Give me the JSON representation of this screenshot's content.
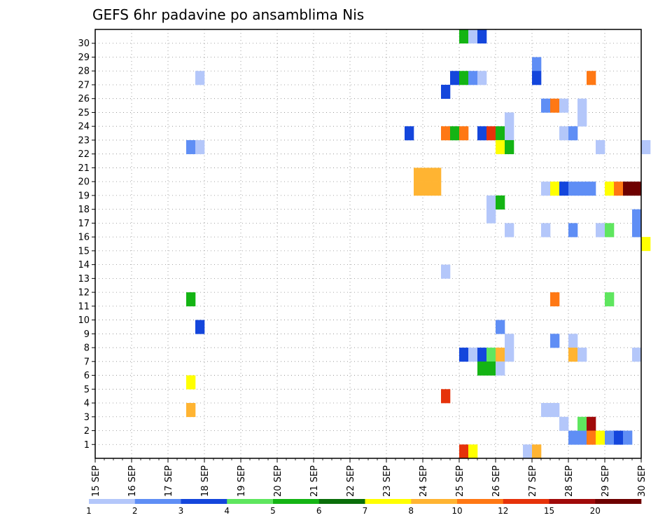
{
  "chart_data": {
    "type": "heatmap",
    "title": "GEFS 6hr padavine po ansamblima Nis",
    "xlabel": "",
    "ylabel": "",
    "x_tick_labels": [
      "15 SEP",
      "16 SEP",
      "17 SEP",
      "18 SEP",
      "19 SEP",
      "20 SEP",
      "21 SEP",
      "22 SEP",
      "23 SEP",
      "24 SEP",
      "25 SEP",
      "26 SEP",
      "27 SEP",
      "28 SEP",
      "29 SEP",
      "30 SEP"
    ],
    "y_tick_labels": [
      "1",
      "2",
      "3",
      "4",
      "5",
      "6",
      "7",
      "8",
      "9",
      "10",
      "11",
      "12",
      "13",
      "14",
      "15",
      "16",
      "17",
      "18",
      "19",
      "20",
      "21",
      "22",
      "23",
      "24",
      "25",
      "26",
      "27",
      "28",
      "29",
      "30"
    ],
    "time_steps_per_day": 4,
    "grid": true,
    "legend_position": "bottom",
    "legend": {
      "levels": [
        "1",
        "2",
        "3",
        "4",
        "5",
        "6",
        "7",
        "8",
        "10",
        "12",
        "15",
        "20"
      ],
      "colors": [
        "#b4c7fa",
        "#5f8ef5",
        "#1446dc",
        "#5fe65f",
        "#14b414",
        "#0a6e0a",
        "#ffff00",
        "#ffb432",
        "#ff7814",
        "#e6320a",
        "#a00a0a",
        "#6e0000"
      ]
    },
    "cells": [
      {
        "member": 30,
        "step": 40,
        "category": 5
      },
      {
        "member": 30,
        "step": 41,
        "category": 1
      },
      {
        "member": 30,
        "step": 42,
        "category": 3
      },
      {
        "member": 28,
        "step": 48,
        "category": 2
      },
      {
        "member": 27,
        "step": 11,
        "category": 1
      },
      {
        "member": 27,
        "step": 39,
        "category": 3
      },
      {
        "member": 27,
        "step": 40,
        "category": 5
      },
      {
        "member": 27,
        "step": 41,
        "category": 2
      },
      {
        "member": 27,
        "step": 42,
        "category": 1
      },
      {
        "member": 27,
        "step": 48,
        "category": 3
      },
      {
        "member": 27,
        "step": 54,
        "category": 9
      },
      {
        "member": 26,
        "step": 38,
        "category": 3
      },
      {
        "member": 25,
        "step": 49,
        "category": 2
      },
      {
        "member": 25,
        "step": 50,
        "category": 9
      },
      {
        "member": 25,
        "step": 51,
        "category": 1
      },
      {
        "member": 25,
        "step": 53,
        "category": 1
      },
      {
        "member": 24,
        "step": 45,
        "category": 1
      },
      {
        "member": 24,
        "step": 53,
        "category": 1
      },
      {
        "member": 23,
        "step": 34,
        "category": 3
      },
      {
        "member": 23,
        "step": 38,
        "category": 9
      },
      {
        "member": 23,
        "step": 39,
        "category": 5
      },
      {
        "member": 23,
        "step": 40,
        "category": 9
      },
      {
        "member": 23,
        "step": 42,
        "category": 3
      },
      {
        "member": 23,
        "step": 43,
        "category": 10
      },
      {
        "member": 23,
        "step": 44,
        "category": 5
      },
      {
        "member": 23,
        "step": 45,
        "category": 1
      },
      {
        "member": 23,
        "step": 51,
        "category": 1
      },
      {
        "member": 23,
        "step": 52,
        "category": 2
      },
      {
        "member": 22,
        "step": 10,
        "category": 2
      },
      {
        "member": 22,
        "step": 11,
        "category": 1
      },
      {
        "member": 22,
        "step": 44,
        "category": 7
      },
      {
        "member": 22,
        "step": 45,
        "category": 5
      },
      {
        "member": 22,
        "step": 55,
        "category": 1
      },
      {
        "member": 22,
        "step": 60,
        "category": 1
      },
      {
        "member": 20,
        "step": 35,
        "category": 8
      },
      {
        "member": 20,
        "step": 36,
        "category": 8
      },
      {
        "member": 20,
        "step": 37,
        "category": 8
      },
      {
        "member": 19,
        "step": 35,
        "category": 8
      },
      {
        "member": 19,
        "step": 36,
        "category": 8
      },
      {
        "member": 19,
        "step": 37,
        "category": 8
      },
      {
        "member": 19,
        "step": 49,
        "category": 1
      },
      {
        "member": 19,
        "step": 50,
        "category": 7
      },
      {
        "member": 19,
        "step": 51,
        "category": 3
      },
      {
        "member": 19,
        "step": 52,
        "category": 2
      },
      {
        "member": 19,
        "step": 53,
        "category": 2
      },
      {
        "member": 19,
        "step": 54,
        "category": 2
      },
      {
        "member": 19,
        "step": 56,
        "category": 7
      },
      {
        "member": 19,
        "step": 57,
        "category": 9
      },
      {
        "member": 19,
        "step": 58,
        "category": 12
      },
      {
        "member": 19,
        "step": 59,
        "category": 12
      },
      {
        "member": 18,
        "step": 43,
        "category": 1
      },
      {
        "member": 18,
        "step": 44,
        "category": 5
      },
      {
        "member": 17,
        "step": 43,
        "category": 1
      },
      {
        "member": 17,
        "step": 59,
        "category": 2
      },
      {
        "member": 16,
        "step": 45,
        "category": 1
      },
      {
        "member": 16,
        "step": 49,
        "category": 1
      },
      {
        "member": 16,
        "step": 52,
        "category": 2
      },
      {
        "member": 16,
        "step": 55,
        "category": 1
      },
      {
        "member": 16,
        "step": 56,
        "category": 4
      },
      {
        "member": 16,
        "step": 59,
        "category": 2
      },
      {
        "member": 15,
        "step": 60,
        "category": 7
      },
      {
        "member": 13,
        "step": 38,
        "category": 1
      },
      {
        "member": 11,
        "step": 10,
        "category": 5
      },
      {
        "member": 11,
        "step": 50,
        "category": 9
      },
      {
        "member": 11,
        "step": 56,
        "category": 4
      },
      {
        "member": 9,
        "step": 11,
        "category": 3
      },
      {
        "member": 9,
        "step": 44,
        "category": 2
      },
      {
        "member": 8,
        "step": 45,
        "category": 1
      },
      {
        "member": 8,
        "step": 50,
        "category": 2
      },
      {
        "member": 8,
        "step": 52,
        "category": 1
      },
      {
        "member": 7,
        "step": 40,
        "category": 3
      },
      {
        "member": 7,
        "step": 41,
        "category": 1
      },
      {
        "member": 7,
        "step": 42,
        "category": 3
      },
      {
        "member": 7,
        "step": 43,
        "category": 4
      },
      {
        "member": 7,
        "step": 44,
        "category": 8
      },
      {
        "member": 7,
        "step": 45,
        "category": 1
      },
      {
        "member": 7,
        "step": 52,
        "category": 8
      },
      {
        "member": 7,
        "step": 53,
        "category": 1
      },
      {
        "member": 7,
        "step": 59,
        "category": 1
      },
      {
        "member": 6,
        "step": 42,
        "category": 5
      },
      {
        "member": 6,
        "step": 43,
        "category": 5
      },
      {
        "member": 6,
        "step": 44,
        "category": 1
      },
      {
        "member": 5,
        "step": 10,
        "category": 7
      },
      {
        "member": 4,
        "step": 38,
        "category": 10
      },
      {
        "member": 3,
        "step": 10,
        "category": 8
      },
      {
        "member": 3,
        "step": 49,
        "category": 1
      },
      {
        "member": 3,
        "step": 50,
        "category": 1
      },
      {
        "member": 2,
        "step": 51,
        "category": 1
      },
      {
        "member": 2,
        "step": 53,
        "category": 4
      },
      {
        "member": 2,
        "step": 54,
        "category": 11
      },
      {
        "member": 1,
        "step": 52,
        "category": 2
      },
      {
        "member": 1,
        "step": 53,
        "category": 2
      },
      {
        "member": 1,
        "step": 54,
        "category": 9
      },
      {
        "member": 1,
        "step": 55,
        "category": 7
      },
      {
        "member": 1,
        "step": 56,
        "category": 2
      },
      {
        "member": 1,
        "step": 57,
        "category": 3
      },
      {
        "member": 1,
        "step": 58,
        "category": 2
      },
      {
        "member": 0,
        "step": 40,
        "category": 10
      },
      {
        "member": 0,
        "step": 41,
        "category": 7
      },
      {
        "member": 0,
        "step": 47,
        "category": 1
      },
      {
        "member": 0,
        "step": 48,
        "category": 8
      }
    ]
  }
}
